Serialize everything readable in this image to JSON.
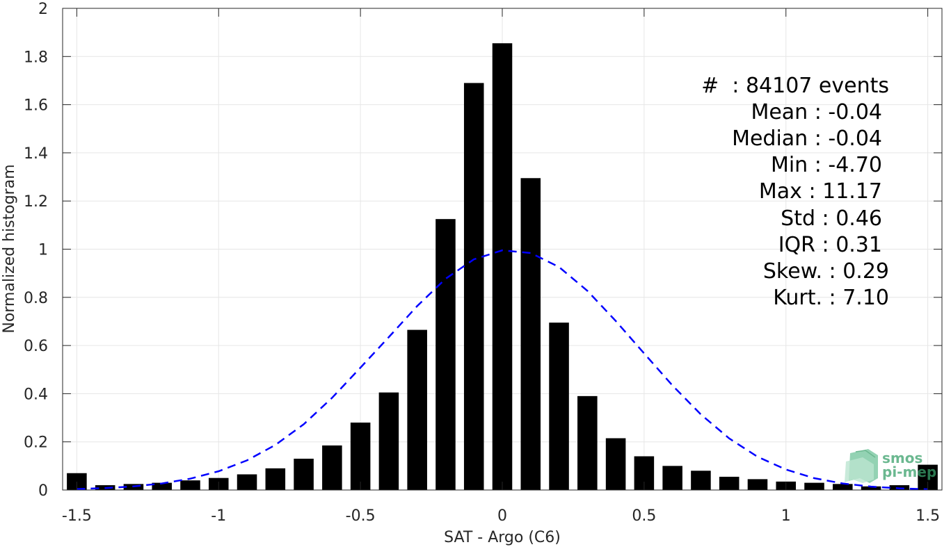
{
  "chart_data": {
    "type": "bar",
    "xlabel": "SAT - Argo (C6)",
    "ylabel": "Normalized histogram",
    "xlim": [
      -1.55,
      1.55
    ],
    "ylim": [
      0,
      2
    ],
    "grid": true,
    "x_ticks": [
      -1.5,
      -1,
      -0.5,
      0,
      0.5,
      1,
      1.5
    ],
    "x_tick_labels": [
      "-1.5",
      "-1",
      "-0.5",
      "0",
      "0.5",
      "1",
      "1.5"
    ],
    "y_ticks": [
      0,
      0.2,
      0.4,
      0.6,
      0.8,
      1,
      1.2,
      1.4,
      1.6,
      1.8,
      2
    ],
    "y_tick_labels": [
      "0",
      "0.2",
      "0.4",
      "0.6",
      "0.8",
      "1",
      "1.2",
      "1.4",
      "1.6",
      "1.8",
      "2"
    ],
    "bar_color": "#000000",
    "series": [
      {
        "type": "bar",
        "x": [
          -1.5,
          -1.4,
          -1.3,
          -1.2,
          -1.1,
          -1.0,
          -0.9,
          -0.8,
          -0.7,
          -0.6,
          -0.5,
          -0.4,
          -0.3,
          -0.2,
          -0.1,
          0.0,
          0.1,
          0.2,
          0.3,
          0.4,
          0.5,
          0.6,
          0.7,
          0.8,
          0.9,
          1.0,
          1.1,
          1.2,
          1.3,
          1.4,
          1.5
        ],
        "values": [
          0.07,
          0.02,
          0.025,
          0.03,
          0.04,
          0.05,
          0.065,
          0.09,
          0.13,
          0.185,
          0.28,
          0.405,
          0.665,
          1.125,
          1.69,
          1.855,
          1.295,
          0.695,
          0.39,
          0.215,
          0.14,
          0.1,
          0.08,
          0.055,
          0.045,
          0.035,
          0.03,
          0.025,
          0.015,
          0.02,
          0.105
        ]
      },
      {
        "type": "line",
        "style": "dashed",
        "color": "#0000ff",
        "x": [
          -1.5,
          -1.4,
          -1.3,
          -1.2,
          -1.1,
          -1.0,
          -0.9,
          -0.8,
          -0.7,
          -0.6,
          -0.5,
          -0.4,
          -0.3,
          -0.2,
          -0.1,
          0.0,
          0.1,
          0.2,
          0.3,
          0.4,
          0.5,
          0.6,
          0.7,
          0.8,
          0.9,
          1.0,
          1.1,
          1.2,
          1.3,
          1.4,
          1.5
        ],
        "values": [
          0.004,
          0.008,
          0.015,
          0.027,
          0.047,
          0.078,
          0.123,
          0.187,
          0.273,
          0.383,
          0.508,
          0.635,
          0.764,
          0.877,
          0.958,
          0.995,
          0.984,
          0.926,
          0.827,
          0.702,
          0.567,
          0.434,
          0.314,
          0.214,
          0.138,
          0.085,
          0.049,
          0.027,
          0.014,
          0.007,
          0.003
        ]
      }
    ],
    "annotations": [
      "#  : 84107 events",
      "Mean : -0.04",
      "Median : -0.04",
      "Min : -4.70",
      "Max : 11.17",
      "Std : 0.46",
      "IQR : 0.31",
      "Skew. : 0.29",
      "Kurt. : 7.10"
    ]
  },
  "logo": {
    "line1": "smos",
    "line2": "pi-mep",
    "color": "#3aa16b"
  }
}
